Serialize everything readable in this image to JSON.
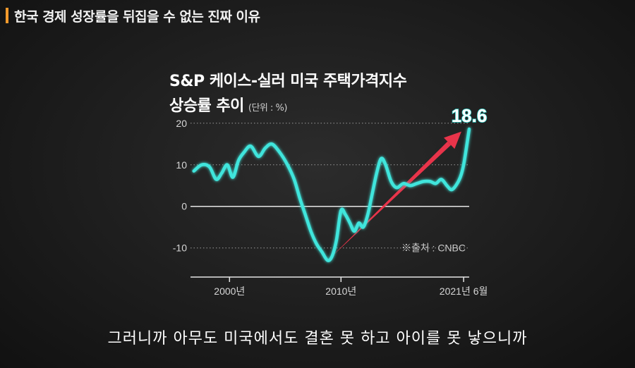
{
  "header": {
    "title": "한국 경제 성장률을 뒤집을 수 없는 진짜 이유"
  },
  "caption": "그러니까 아무도 미국에서도 결혼 못 하고 아이를 못 낳으니까",
  "colors": {
    "accent": "#f39a2c",
    "line": "#3fe5dc",
    "arrow": "#e8344a"
  },
  "chart_data": {
    "type": "line",
    "title": "S&P 케이스-실러 미국 주택가격지수",
    "subtitle": "상승률 추이",
    "unit": "(단위 : %)",
    "source": "※출처 : CNBC",
    "ylim": [
      -17,
      22
    ],
    "xlim": [
      1996.5,
      2021.5
    ],
    "yticks": [
      20,
      10,
      0,
      -10
    ],
    "ytick_labels": [
      "20",
      "10",
      "0",
      "-10"
    ],
    "xticks": [
      2000,
      2010,
      2021
    ],
    "xtick_labels": [
      "2000년",
      "2010년",
      "2021년 6월"
    ],
    "grid": "dotted",
    "final_label": "18.6",
    "series": [
      {
        "x": [
          1996.8,
          1997.5,
          1998.2,
          1998.8,
          1999.3,
          1999.8,
          2000.3,
          2000.8,
          2001.3,
          2001.9,
          2002.6,
          2003.2,
          2003.8,
          2004.5,
          2005.2,
          2005.8,
          2006.3,
          2006.8,
          2007.3,
          2007.8,
          2008.3,
          2008.8,
          2009.2,
          2009.6,
          2010.0,
          2010.4,
          2010.8,
          2011.2,
          2011.6,
          2012.0,
          2012.4,
          2012.8,
          2013.2,
          2013.6,
          2014.0,
          2014.5,
          2015.0,
          2015.6,
          2016.2,
          2016.8,
          2017.4,
          2018.0,
          2018.5,
          2019.0,
          2019.5,
          2019.9,
          2020.3,
          2020.7,
          2021.0,
          2021.3,
          2021.5
        ],
        "y": [
          8.5,
          10,
          9.5,
          6.5,
          8,
          10,
          7,
          11,
          13,
          14.5,
          12,
          14,
          15,
          13,
          10,
          6.5,
          2,
          -2,
          -6,
          -9,
          -11,
          -13,
          -12,
          -8,
          -1,
          -2,
          -4,
          -6,
          -4,
          -5,
          -2,
          3,
          8,
          11.5,
          10,
          6,
          4.5,
          5.5,
          5,
          5.5,
          6,
          6,
          5.5,
          6.5,
          5,
          4,
          5,
          7,
          10,
          15,
          18.6
        ]
      }
    ],
    "trend_arrow": {
      "from": [
        2009.0,
        -12.5
      ],
      "to": [
        2020.8,
        18.0
      ]
    }
  }
}
